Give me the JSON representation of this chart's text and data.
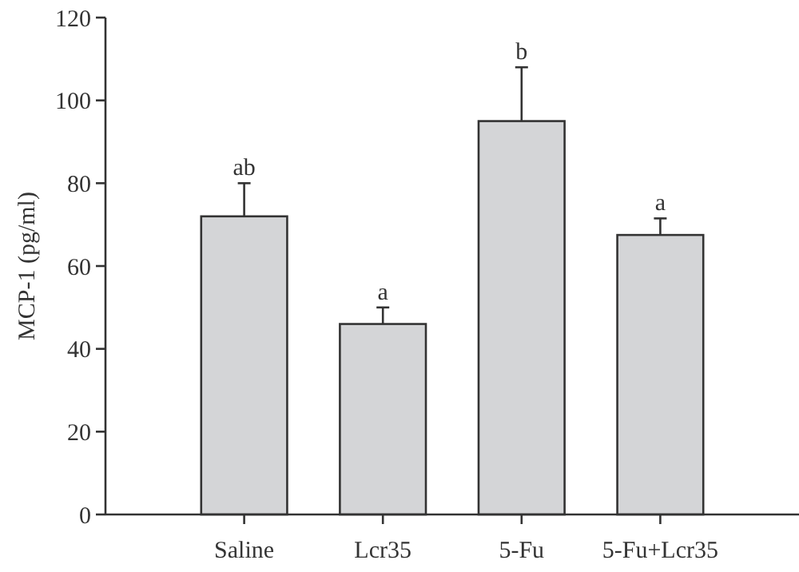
{
  "chart_data": {
    "type": "bar",
    "ylabel": "MCP-1 (pg/ml)",
    "categories": [
      "Saline",
      "Lcr35",
      "5-Fu",
      "5-Fu+Lcr35"
    ],
    "values": [
      72,
      46,
      95,
      67.5
    ],
    "color": "#d4d5d7",
    "errors": [
      8,
      4,
      13,
      4
    ],
    "ylim": [
      0,
      120
    ],
    "yticks": [
      0,
      20,
      40,
      60,
      80,
      100,
      120
    ],
    "grid": false,
    "annotations": [
      {
        "text": "ab",
        "x": "Saline",
        "y": 80
      },
      {
        "text": "a",
        "x": "Lcr35",
        "y": 50
      },
      {
        "text": "b",
        "x": "5-Fu",
        "y": 108
      },
      {
        "text": "a",
        "x": "5-Fu+Lcr35",
        "y": 71.5
      }
    ]
  }
}
